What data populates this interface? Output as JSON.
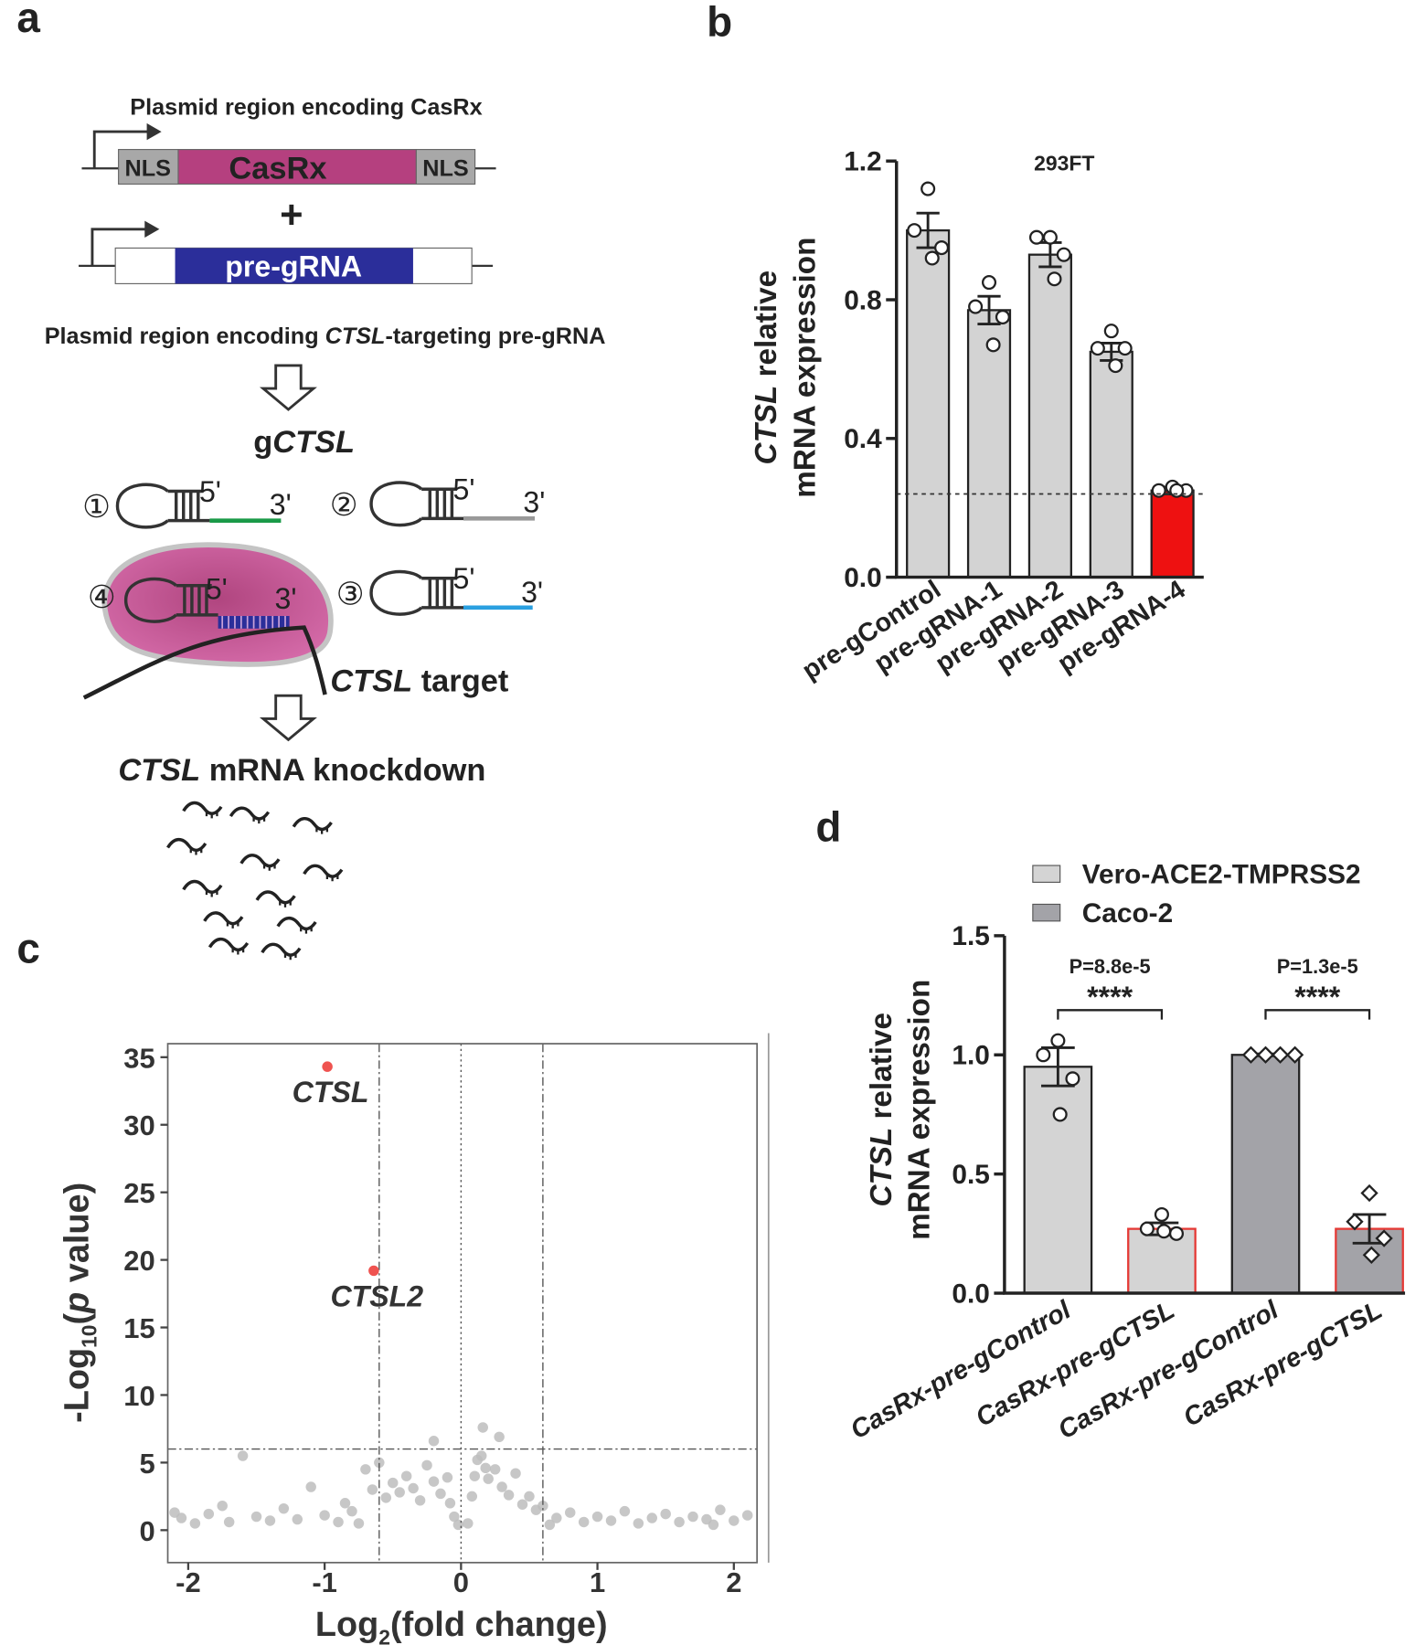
{
  "panel_labels": [
    "a",
    "b",
    "c",
    "d"
  ],
  "diagram": {
    "casrx_title": "Plasmid region encoding CasRx",
    "casrx_segments": [
      "NLS",
      "CasRx",
      "NLS"
    ],
    "plus": "+",
    "grna_segment": "pre-gRNA",
    "grna_title": [
      "Plasmid region encoding ",
      "CTSL",
      "-targeting pre-gRNA"
    ],
    "product": [
      "g",
      "CTSL"
    ],
    "guides": [
      {
        "number": "①",
        "five": "5'",
        "three": "3'"
      },
      {
        "number": "②",
        "five": "5'",
        "three": "3'"
      },
      {
        "number": "③",
        "five": "5'",
        "three": "3'"
      },
      {
        "number": "④",
        "five": "5'",
        "three": "3'"
      }
    ],
    "target": [
      "CTSL",
      " target"
    ],
    "result": [
      "CTSL",
      " mRNA knockdown"
    ]
  },
  "chart_data": [
    {
      "type": "bar",
      "title": "293FT",
      "ylabel": [
        "CTSL",
        " relative",
        "mRNA expression"
      ],
      "categories": [
        "pre-gControl",
        "pre-gRNA-1",
        "pre-gRNA-2",
        "pre-gRNA-3",
        "pre-gRNA-4"
      ],
      "values": [
        1.0,
        0.77,
        0.93,
        0.65,
        0.25
      ],
      "errors": [
        0.05,
        0.04,
        0.035,
        0.025,
        0.01
      ],
      "points": [
        [
          1.12,
          1.0,
          0.95,
          0.92
        ],
        [
          0.85,
          0.78,
          0.75,
          0.67
        ],
        [
          0.98,
          0.98,
          0.93,
          0.86
        ],
        [
          0.71,
          0.66,
          0.66,
          0.61
        ],
        [
          0.26,
          0.25,
          0.25,
          0.25
        ]
      ],
      "colors": [
        "#d3d3d3",
        "#d3d3d3",
        "#d3d3d3",
        "#d3d3d3",
        "#ee1111"
      ],
      "ylim": [
        0,
        1.2
      ],
      "yticks": [
        {
          "value": 0,
          "label": "0.0"
        },
        0.4,
        0.8,
        1.2
      ],
      "reference_line": 0.24
    },
    {
      "type": "scatter",
      "xlabel": [
        "Log",
        "2",
        "(fold change)"
      ],
      "ylabel": [
        "-Log",
        "10",
        "(",
        "p",
        " value)"
      ],
      "x": [
        -2.05,
        -1.95,
        -1.85,
        -1.7,
        -1.6,
        -1.5,
        -1.4,
        -1.3,
        -1.2,
        -1.1,
        -1.0,
        -0.9,
        -0.85,
        -0.8,
        -0.7,
        -0.65,
        -0.6,
        -0.55,
        -0.5,
        -0.45,
        -0.4,
        -0.35,
        -0.3,
        -0.25,
        -0.2,
        -0.2,
        -0.15,
        -0.1,
        -0.08,
        -0.05,
        -0.02,
        0.05,
        0.08,
        0.1,
        0.12,
        0.15,
        0.18,
        0.16,
        0.2,
        0.25,
        0.28,
        0.3,
        0.35,
        0.4,
        0.45,
        0.5,
        0.55,
        0.6,
        0.7,
        0.8,
        0.9,
        1.0,
        1.1,
        1.2,
        1.3,
        1.4,
        1.5,
        1.6,
        1.7,
        1.8,
        1.9,
        2.0,
        2.1,
        -2.1,
        -1.75,
        -0.75,
        0.65,
        1.85
      ],
      "y": [
        0.9,
        0.5,
        1.2,
        0.6,
        5.5,
        1.0,
        0.7,
        1.6,
        0.8,
        3.2,
        1.1,
        0.6,
        2.0,
        1.4,
        4.5,
        3.0,
        5.0,
        2.4,
        3.5,
        2.8,
        4.0,
        3.1,
        2.2,
        4.8,
        6.6,
        3.6,
        2.7,
        3.9,
        2.0,
        1.0,
        0.4,
        0.5,
        2.5,
        4.0,
        5.2,
        5.5,
        4.6,
        7.6,
        3.8,
        4.5,
        6.9,
        3.2,
        2.6,
        4.2,
        1.9,
        2.5,
        1.5,
        1.8,
        0.9,
        1.3,
        0.6,
        1.0,
        0.7,
        1.4,
        0.5,
        0.9,
        1.2,
        0.6,
        1.0,
        0.8,
        1.5,
        0.7,
        1.1,
        1.3,
        1.8,
        0.5,
        0.4,
        0.4
      ],
      "color": "#bdbdbd",
      "highlights": {
        "labels": [
          "CTSL",
          "CTSL2"
        ],
        "x": [
          -0.98,
          -0.64
        ],
        "y": [
          34.3,
          19.2
        ],
        "color": "#ef5350"
      },
      "xlim": [
        -2.15,
        2.17
      ],
      "ylim": [
        -2.4,
        36
      ],
      "xticks": [
        -2,
        -1,
        0,
        1,
        2
      ],
      "yticks": [
        0,
        5,
        10,
        15,
        20,
        25,
        30,
        35
      ],
      "vlines": [
        -0.6,
        0,
        0.6
      ],
      "hlines": [
        6
      ]
    },
    {
      "type": "grouped_bar",
      "ylabel": [
        "CTSL",
        " relative",
        "mRNA expression"
      ],
      "categories": [
        "CasRx-pre-gControl",
        "CasRx-pre-gCTSL",
        "CasRx-pre-gControl",
        "CasRx-pre-gCTSL"
      ],
      "series": [
        {
          "name": "Vero-ACE2-TMPRSS2",
          "color": "#d4d4d4",
          "marker": "circle",
          "values": [
            0.95,
            0.27,
            null,
            null
          ],
          "errors": [
            0.08,
            0.025,
            null,
            null
          ],
          "points": [
            [
              1.06,
              1.0,
              0.9,
              0.75
            ],
            [
              0.33,
              0.27,
              0.25,
              0.26
            ],
            null,
            null
          ]
        },
        {
          "name": "Caco-2",
          "color": "#a3a3a8",
          "marker": "diamond",
          "values": [
            null,
            null,
            1.0,
            0.27
          ],
          "errors": [
            null,
            null,
            0.004,
            0.06
          ],
          "points": [
            null,
            null,
            [
              1,
              1,
              1,
              1
            ],
            [
              0.42,
              0.3,
              0.23,
              0.16
            ]
          ]
        }
      ],
      "edge_colors": [
        "#222222",
        "#e53935",
        "#222222",
        "#e53935"
      ],
      "annotations": [
        {
          "p": "P=8.8e-5",
          "stars": "****"
        },
        {
          "p": "P=1.3e-5",
          "stars": "****"
        }
      ],
      "ylim": [
        0,
        1.5
      ],
      "yticks": [
        {
          "value": 0,
          "label": "0.0"
        },
        0.5,
        {
          "value": 1,
          "label": "1.0"
        },
        1.5
      ]
    }
  ]
}
